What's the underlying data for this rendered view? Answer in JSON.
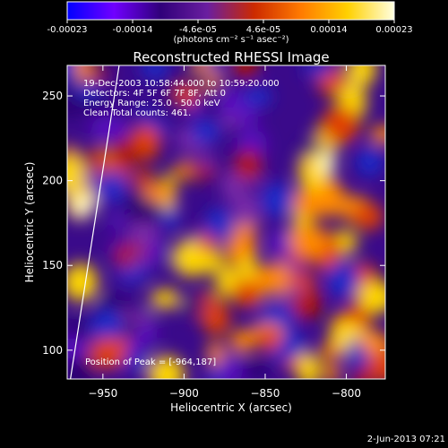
{
  "colorbar": {
    "ticks": [
      "-0.00023",
      "-0.00014",
      "-4.6e-05",
      "4.6e-05",
      "0.00014",
      "0.00023"
    ],
    "unit": "(photons cm⁻² s⁻¹ asec⁻²)",
    "colors": [
      "#0000ff",
      "#7000ff",
      "#30007a",
      "#6a1ea0",
      "#cc2a00",
      "#ff7a00",
      "#ffd000",
      "#ffffe0"
    ]
  },
  "chart_data": {
    "type": "heatmap",
    "title": "Reconstructed RHESSI Image",
    "xlabel": "Heliocentric X (arcsec)",
    "ylabel": "Heliocentric Y (arcsec)",
    "xlim": [
      -972,
      -776
    ],
    "ylim": [
      83,
      268
    ],
    "xticks": [
      -950,
      -900,
      -850,
      -800
    ],
    "yticks": [
      100,
      150,
      200,
      250
    ],
    "xtick_labels": [
      "−950",
      "−900",
      "−850",
      "−800"
    ],
    "ytick_labels": [
      "100",
      "150",
      "200",
      "250"
    ],
    "value_range": [
      -0.00023,
      0.00023
    ],
    "annotations": [
      "19-Dec-2003 10:58:44.000 to 10:59:20.000",
      "Detectors: 4F 5F 6F 7F 8F, Att 0",
      "Energy Range: 25.0 - 50.0 keV",
      "Clean    Total counts: 461."
    ],
    "peak_label": "Position of Peak = [-964,187]",
    "peak": [
      -964,
      187
    ],
    "limb_line": [
      [
        -970,
        83
      ],
      [
        -940,
        268
      ]
    ]
  },
  "footer": {
    "date": "2-Jun-2013 07:21"
  }
}
